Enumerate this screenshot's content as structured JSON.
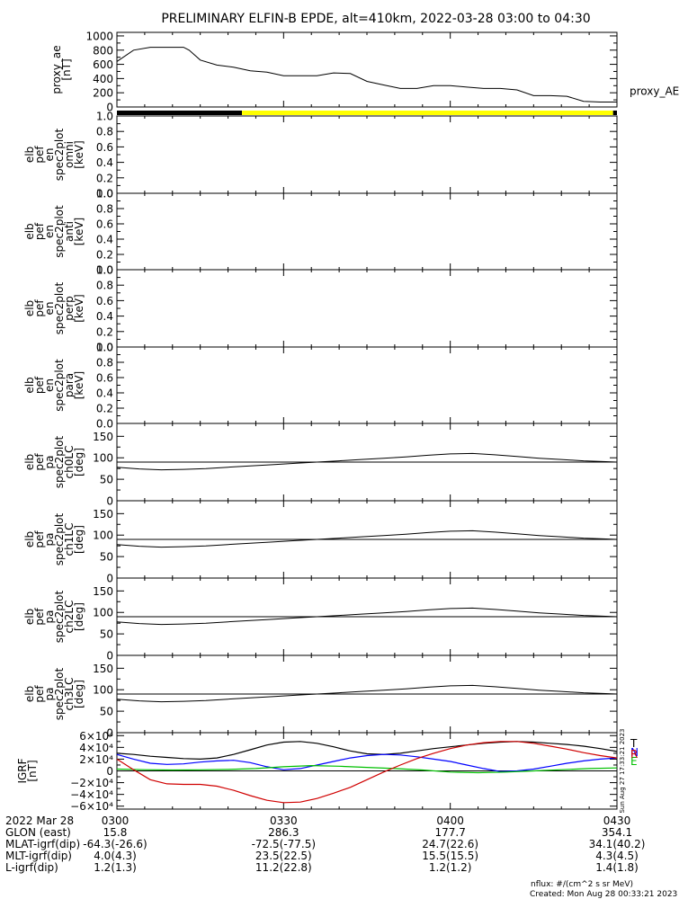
{
  "title": "PRELIMINARY ELFIN-B EPDE, alt=410km, 2022-03-28 03:00 to 04:30",
  "time_range": {
    "start_min": 180,
    "end_min": 270
  },
  "panels": [
    {
      "id": "proxy_ae",
      "ylabel_lines": [
        "proxy_ae",
        "[nT]"
      ],
      "right_label": "proxy_AE",
      "ylim": [
        0,
        1050
      ],
      "yticks": [
        {
          "v": 0,
          "t": "0"
        },
        {
          "v": 200,
          "t": "200"
        },
        {
          "v": 400,
          "t": "400"
        },
        {
          "v": 600,
          "t": "600"
        },
        {
          "v": 800,
          "t": "800"
        },
        {
          "v": 1000,
          "t": "1000"
        }
      ]
    },
    {
      "id": "pef_en_omni",
      "ylabel_lines": [
        "elb",
        "pef",
        "en",
        "spec2plot",
        "omni",
        "[keV]"
      ],
      "ylim": [
        0,
        1
      ],
      "yticks": [
        {
          "v": 0,
          "t": "0.0"
        },
        {
          "v": 0.2,
          "t": "0.2"
        },
        {
          "v": 0.4,
          "t": "0.4"
        },
        {
          "v": 0.6,
          "t": "0.6"
        },
        {
          "v": 0.8,
          "t": "0.8"
        },
        {
          "v": 1.0,
          "t": "1.0"
        }
      ]
    },
    {
      "id": "pef_en_anti",
      "ylabel_lines": [
        "elb",
        "pef",
        "en",
        "spec2plot",
        "anti",
        "[keV]"
      ],
      "ylim": [
        0,
        1
      ],
      "yticks": [
        {
          "v": 0,
          "t": "0.0"
        },
        {
          "v": 0.2,
          "t": "0.2"
        },
        {
          "v": 0.4,
          "t": "0.4"
        },
        {
          "v": 0.6,
          "t": "0.6"
        },
        {
          "v": 0.8,
          "t": "0.8"
        },
        {
          "v": 1.0,
          "t": "1.0"
        }
      ]
    },
    {
      "id": "pef_en_perp",
      "ylabel_lines": [
        "elb",
        "pef",
        "en",
        "spec2plot",
        "perp",
        "[keV]"
      ],
      "ylim": [
        0,
        1
      ],
      "yticks": [
        {
          "v": 0,
          "t": "0.0"
        },
        {
          "v": 0.2,
          "t": "0.2"
        },
        {
          "v": 0.4,
          "t": "0.4"
        },
        {
          "v": 0.6,
          "t": "0.6"
        },
        {
          "v": 0.8,
          "t": "0.8"
        },
        {
          "v": 1.0,
          "t": "1.0"
        }
      ]
    },
    {
      "id": "pef_en_para",
      "ylabel_lines": [
        "elb",
        "pef",
        "en",
        "spec2plot",
        "para",
        "[keV]"
      ],
      "ylim": [
        0,
        1
      ],
      "yticks": [
        {
          "v": 0,
          "t": "0.0"
        },
        {
          "v": 0.2,
          "t": "0.2"
        },
        {
          "v": 0.4,
          "t": "0.4"
        },
        {
          "v": 0.6,
          "t": "0.6"
        },
        {
          "v": 0.8,
          "t": "0.8"
        },
        {
          "v": 1.0,
          "t": "1.0"
        }
      ]
    },
    {
      "id": "pef_pa_ch0LC",
      "ylabel_lines": [
        "elb",
        "pef",
        "pa",
        "spec2plot",
        "ch0LC",
        "[deg]"
      ],
      "ylim": [
        0,
        180
      ],
      "yticks": [
        {
          "v": 0,
          "t": "0"
        },
        {
          "v": 50,
          "t": "50"
        },
        {
          "v": 100,
          "t": "100"
        },
        {
          "v": 150,
          "t": "150"
        }
      ]
    },
    {
      "id": "pef_pa_ch1LC",
      "ylabel_lines": [
        "elb",
        "pef",
        "pa",
        "spec2plot",
        "ch1LC",
        "[deg]"
      ],
      "ylim": [
        0,
        180
      ],
      "yticks": [
        {
          "v": 0,
          "t": "0"
        },
        {
          "v": 50,
          "t": "50"
        },
        {
          "v": 100,
          "t": "100"
        },
        {
          "v": 150,
          "t": "150"
        }
      ]
    },
    {
      "id": "pef_pa_ch2LC",
      "ylabel_lines": [
        "elb",
        "pef",
        "pa",
        "spec2plot",
        "ch2LC",
        "[deg]"
      ],
      "ylim": [
        0,
        180
      ],
      "yticks": [
        {
          "v": 0,
          "t": "0"
        },
        {
          "v": 50,
          "t": "50"
        },
        {
          "v": 100,
          "t": "100"
        },
        {
          "v": 150,
          "t": "150"
        }
      ]
    },
    {
      "id": "pef_pa_ch3LC",
      "ylabel_lines": [
        "elb",
        "pef",
        "pa",
        "spec2plot",
        "ch3LC",
        "[deg]"
      ],
      "ylim": [
        0,
        180
      ],
      "yticks": [
        {
          "v": 0,
          "t": "0"
        },
        {
          "v": 50,
          "t": "50"
        },
        {
          "v": 100,
          "t": "100"
        },
        {
          "v": 150,
          "t": "150"
        }
      ]
    },
    {
      "id": "b_igrf",
      "ylabel_lines": [
        "IGRF",
        "[nT]"
      ],
      "ylim": [
        -65000,
        65000
      ],
      "yticks": [
        {
          "v": -60000,
          "t": "−6×10⁴"
        },
        {
          "v": -40000,
          "t": "−4×10⁴"
        },
        {
          "v": -20000,
          "t": "−2×10⁴"
        },
        {
          "v": 0,
          "t": "0"
        },
        {
          "v": 20000,
          "t": "2×10⁴"
        },
        {
          "v": 40000,
          "t": "4×10⁴"
        },
        {
          "v": 60000,
          "t": "6×10⁴"
        }
      ],
      "legend": [
        {
          "text": "T",
          "color": "#000000"
        },
        {
          "text": "N",
          "color": "#0000ff"
        },
        {
          "text": "E",
          "color": "#00c000"
        },
        {
          "text": "R",
          "color": "#d00000"
        }
      ],
      "side_stamp": "Sun Aug 27 17:33:21 2023"
    }
  ],
  "chart_data": {
    "type": "line",
    "x_units": "minutes after 00:00 UT",
    "proxy_ae": {
      "x": [
        180,
        183,
        186,
        189,
        192,
        193,
        195,
        198,
        201,
        204,
        207,
        210,
        213,
        216,
        219,
        222,
        225,
        228,
        231,
        234,
        237,
        240,
        243,
        246,
        249,
        252,
        255,
        258,
        261,
        264,
        267,
        270
      ],
      "y": [
        640,
        800,
        840,
        840,
        840,
        800,
        660,
        590,
        560,
        510,
        490,
        440,
        440,
        440,
        480,
        470,
        360,
        310,
        260,
        260,
        300,
        300,
        280,
        260,
        260,
        240,
        160,
        160,
        150,
        80,
        70,
        70
      ]
    },
    "status_bar": [
      {
        "x0": 180,
        "x1": 202.5,
        "color": "#000000"
      },
      {
        "x0": 202.5,
        "x1": 269.3,
        "color": "#ffff00"
      },
      {
        "x0": 269.3,
        "x1": 270,
        "color": "#000000"
      }
    ],
    "pa_panels": {
      "horizontal_line": 90,
      "curve": {
        "x": [
          180,
          184,
          188,
          192,
          196,
          200,
          204,
          208,
          212,
          216,
          220,
          224,
          228,
          232,
          236,
          240,
          244,
          248,
          252,
          256,
          260,
          264,
          268,
          270
        ],
        "y": [
          78,
          74,
          72,
          73,
          75,
          78,
          81,
          84,
          87,
          90,
          93,
          96,
          99,
          102,
          106,
          109,
          110,
          107,
          103,
          99,
          96,
          93,
          91,
          90
        ]
      }
    },
    "b_igrf": {
      "series": [
        {
          "name": "T",
          "color": "#000000",
          "x": [
            180,
            183,
            186,
            189,
            192,
            195,
            198,
            201,
            204,
            207,
            210,
            213,
            216,
            219,
            222,
            225,
            228,
            231,
            234,
            237,
            240,
            243,
            246,
            249,
            252,
            255,
            258,
            261,
            264,
            267,
            270
          ],
          "y": [
            30000,
            28000,
            25000,
            23000,
            21000,
            20000,
            22000,
            28000,
            36000,
            44000,
            49000,
            50000,
            47000,
            41000,
            34000,
            29000,
            28000,
            30000,
            34000,
            38000,
            41000,
            44000,
            47000,
            49000,
            50000,
            49000,
            47000,
            45000,
            42000,
            38000,
            33000
          ]
        },
        {
          "name": "N",
          "color": "#0000ff",
          "x": [
            180,
            183,
            186,
            189,
            192,
            195,
            198,
            201,
            204,
            207,
            210,
            213,
            216,
            219,
            222,
            225,
            228,
            231,
            234,
            237,
            240,
            243,
            246,
            249,
            252,
            255,
            258,
            261,
            264,
            267,
            270
          ],
          "y": [
            28000,
            20000,
            13000,
            11000,
            12000,
            15000,
            17000,
            18000,
            14000,
            7000,
            2000,
            4000,
            10000,
            16000,
            22000,
            26000,
            28000,
            27000,
            24000,
            20000,
            16000,
            10000,
            4000,
            -1000,
            0,
            3000,
            8000,
            13000,
            17000,
            20000,
            22000
          ]
        },
        {
          "name": "E",
          "color": "#00c000",
          "x": [
            180,
            185,
            190,
            195,
            200,
            205,
            210,
            215,
            220,
            225,
            230,
            235,
            240,
            245,
            250,
            255,
            260,
            265,
            270
          ],
          "y": [
            3000,
            2000,
            1500,
            1800,
            2500,
            4000,
            7000,
            9000,
            8000,
            6000,
            4000,
            1500,
            -2000,
            -3000,
            -2000,
            0,
            2000,
            4000,
            5000
          ]
        },
        {
          "name": "R",
          "color": "#d00000",
          "x": [
            180,
            183,
            186,
            189,
            192,
            195,
            198,
            201,
            204,
            207,
            210,
            213,
            216,
            219,
            222,
            225,
            228,
            231,
            234,
            237,
            240,
            243,
            246,
            249,
            252,
            255,
            258,
            261,
            264,
            267,
            270
          ],
          "y": [
            20000,
            2000,
            -15000,
            -22000,
            -23000,
            -23000,
            -26000,
            -33000,
            -42000,
            -50000,
            -54000,
            -53000,
            -47000,
            -38000,
            -28000,
            -15000,
            -2000,
            10000,
            21000,
            30000,
            38000,
            44000,
            48000,
            50000,
            50000,
            47000,
            42000,
            37000,
            31000,
            26000,
            22000
          ]
        }
      ]
    }
  },
  "footer": {
    "row_labels": [
      "2022 Mar 28",
      "GLON (east)",
      "MLAT-igrf(dip)",
      "MLT-igrf(dip)",
      "L-igrf(dip)"
    ],
    "columns": [
      {
        "t": 180,
        "values": [
          "0300",
          "15.8",
          "-64.3(-26.6)",
          "4.0(4.3)",
          "1.2(1.3)"
        ]
      },
      {
        "t": 210,
        "values": [
          "0330",
          "286.3",
          "-72.5(-77.5)",
          "23.5(22.5)",
          "11.2(22.8)"
        ]
      },
      {
        "t": 240,
        "values": [
          "0400",
          "177.7",
          "24.7(22.6)",
          "15.5(15.5)",
          "1.2(1.2)"
        ]
      },
      {
        "t": 270,
        "values": [
          "0430",
          "354.1",
          "34.1(40.2)",
          "4.3(4.5)",
          "1.4(1.8)"
        ]
      }
    ],
    "nflux_note": "nflux: #/(cm^2 s sr MeV)",
    "created": "Created: Mon Aug 28 00:33:21 2023"
  }
}
